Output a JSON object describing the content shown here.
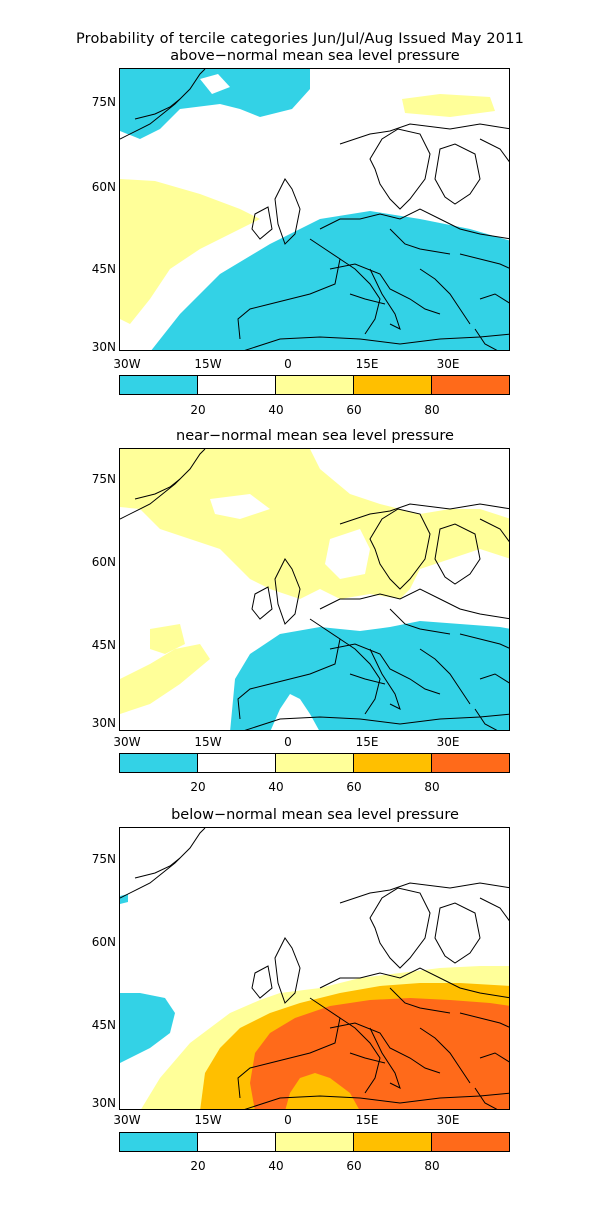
{
  "header": {
    "line1": "Probability of tercile categories Jun/Jul/Aug Issued May 2011"
  },
  "panels": [
    {
      "title": "above−normal mean sea level pressure"
    },
    {
      "title": "near−normal mean sea level pressure"
    },
    {
      "title": "below−normal mean sea level pressure"
    }
  ],
  "axes": {
    "lat_labels": [
      "75N",
      "60N",
      "45N",
      "30N"
    ],
    "lon_labels": [
      "30W",
      "15W",
      "0",
      "15E",
      "30E"
    ]
  },
  "colorbar": {
    "labels": [
      "20",
      "40",
      "60",
      "80"
    ],
    "colors": [
      "#33d2e6",
      "#ffffff",
      "#ffff99",
      "#ffbf00",
      "#ff6a1a"
    ]
  }
}
